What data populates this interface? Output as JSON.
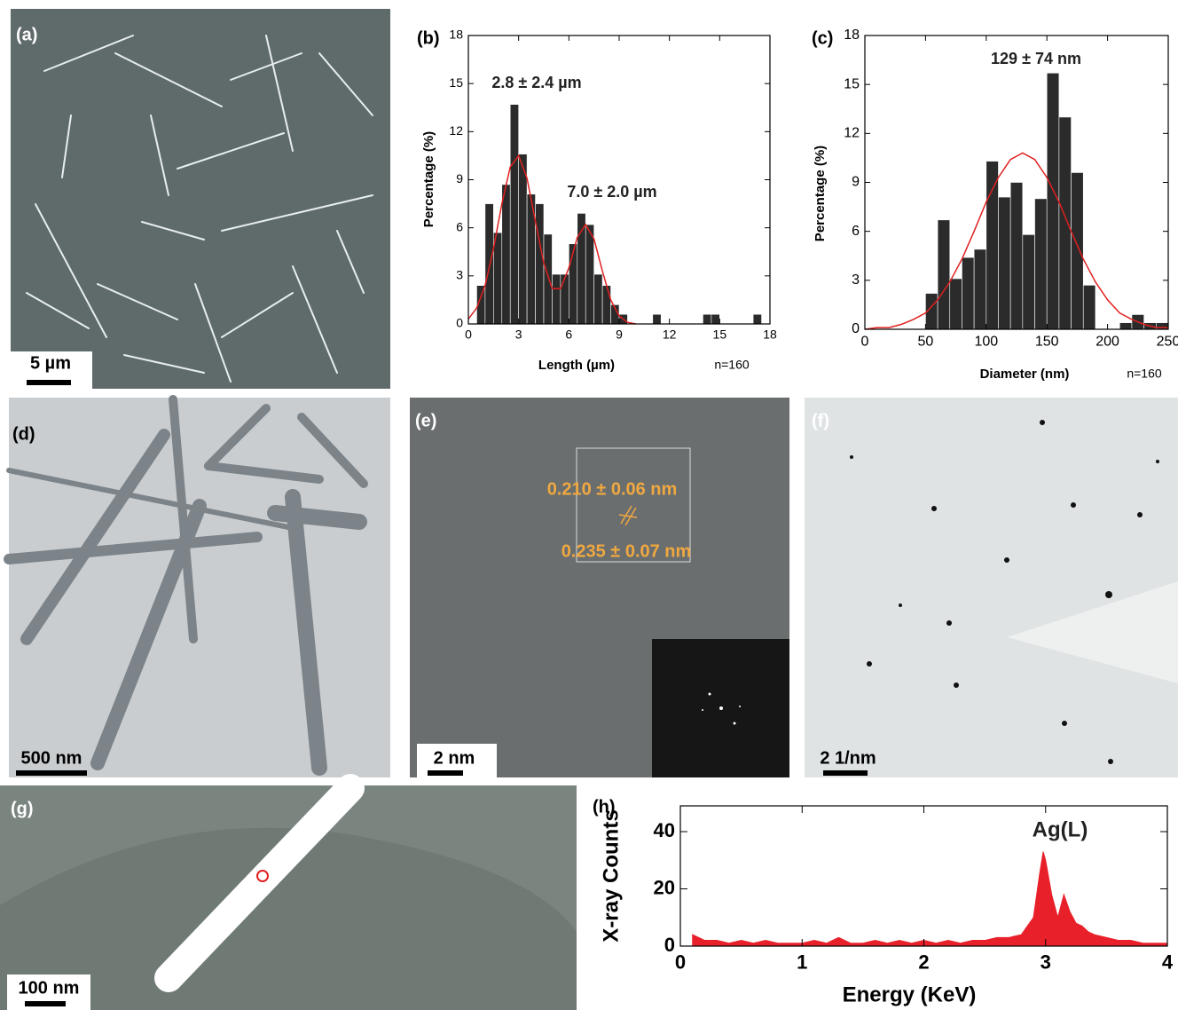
{
  "panels": [
    {
      "label": "(a)",
      "scale_bar": "5 µm"
    },
    {
      "label": "(d)",
      "scale_bar": "500 nm"
    },
    {
      "label": "(e)",
      "scale_bar": "2 nm",
      "annotations": [
        "0.210 ± 0.06 nm",
        "0.235 ± 0.07 nm"
      ]
    },
    {
      "label": "(f)",
      "scale_bar": "2 1/nm"
    },
    {
      "label": "(g)",
      "scale_bar": "100 nm"
    }
  ],
  "chart_data": [
    {
      "type": "histogram",
      "panel": "(b)",
      "xlabel": "Length (µm)",
      "ylabel": "Percentage (%)",
      "note": "n=160",
      "annotations": [
        "2.8 ± 2.4 µm",
        "7.0 ± 2.0 µm"
      ],
      "bins": [
        0.5,
        1,
        1.5,
        2,
        2.5,
        3,
        3.5,
        4,
        4.5,
        5,
        5.5,
        6,
        6.5,
        7,
        7.5,
        8,
        8.5,
        9,
        9.5,
        10,
        10.5,
        11,
        11.5,
        12,
        12.5,
        13,
        13.5,
        14,
        14.5,
        15,
        15.5,
        16,
        16.5,
        17,
        17.5
      ],
      "values": [
        2.4,
        7.5,
        5.7,
        8.7,
        13.7,
        10.6,
        8.1,
        7.5,
        5.6,
        3.1,
        3.1,
        5.0,
        6.9,
        6.2,
        3.1,
        2.4,
        1.2,
        0.6,
        0,
        0,
        0,
        0.6,
        0,
        0,
        0,
        0,
        0,
        0.6,
        0.6,
        0,
        0,
        0,
        0,
        0.6
      ],
      "color": "#2b2b2b",
      "fit": {
        "color": "#e02020",
        "x": [
          0,
          0.5,
          1,
          1.5,
          2,
          2.5,
          3,
          3.5,
          4,
          4.5,
          5,
          5.5,
          6,
          6.5,
          7,
          7.5,
          8,
          8.5,
          9,
          9.5,
          10
        ],
        "values": [
          0.3,
          1.0,
          2.4,
          4.7,
          7.5,
          9.8,
          10.5,
          9.1,
          6.4,
          3.8,
          2.2,
          2.2,
          3.5,
          5.4,
          6.2,
          5.3,
          3.3,
          1.5,
          0.5,
          0.1,
          0
        ]
      },
      "xlim": [
        0,
        18
      ],
      "xticks": [
        0,
        3,
        6,
        9,
        12,
        15,
        18
      ],
      "ylim": [
        0,
        18
      ],
      "yticks": [
        0,
        3,
        6,
        9,
        12,
        15,
        18
      ]
    },
    {
      "type": "histogram",
      "panel": "(c)",
      "xlabel": "Diameter (nm)",
      "ylabel": "Percentage (%)",
      "note": "n=160",
      "annotations": [
        "129 ± 74 nm"
      ],
      "bins": [
        50,
        60,
        70,
        80,
        90,
        100,
        110,
        120,
        130,
        140,
        150,
        160,
        170,
        180,
        190,
        200,
        210,
        220,
        230,
        240,
        250
      ],
      "values": [
        2.2,
        6.7,
        3.1,
        4.4,
        4.9,
        10.3,
        8.1,
        9.0,
        5.8,
        8.0,
        15.7,
        13.0,
        9.6,
        2.7,
        0,
        0,
        0.4,
        0.9,
        0.4,
        0.4
      ],
      "color": "#2b2b2b",
      "fit": {
        "color": "#e02020",
        "x": [
          0,
          10,
          20,
          30,
          40,
          50,
          60,
          70,
          80,
          90,
          100,
          110,
          120,
          130,
          140,
          150,
          160,
          170,
          180,
          190,
          200,
          210,
          220,
          230,
          240,
          250
        ],
        "values": [
          0,
          0.1,
          0.1,
          0.3,
          0.6,
          1.0,
          1.8,
          2.9,
          4.3,
          6.0,
          7.8,
          9.3,
          10.4,
          10.8,
          10.4,
          9.3,
          7.8,
          6.0,
          4.3,
          2.9,
          1.8,
          1.0,
          0.6,
          0.3,
          0.1,
          0.1
        ]
      },
      "xlim": [
        0,
        250
      ],
      "xticks": [
        0,
        50,
        100,
        150,
        200,
        250
      ],
      "ylim": [
        0,
        18
      ],
      "yticks": [
        0,
        3,
        6,
        9,
        12,
        15,
        18
      ]
    },
    {
      "type": "area",
      "panel": "(h)",
      "xlabel": "Energy (KeV)",
      "ylabel": "X-ray Counts",
      "annotations": [
        "Ag(L)"
      ],
      "color": "#e8202a",
      "x": [
        0.1,
        0.2,
        0.3,
        0.4,
        0.5,
        0.6,
        0.7,
        0.8,
        0.9,
        1.0,
        1.1,
        1.2,
        1.3,
        1.4,
        1.5,
        1.6,
        1.7,
        1.8,
        1.9,
        2.0,
        2.1,
        2.2,
        2.3,
        2.4,
        2.5,
        2.6,
        2.7,
        2.8,
        2.9,
        2.95,
        2.98,
        3.0,
        3.05,
        3.1,
        3.15,
        3.2,
        3.25,
        3.3,
        3.35,
        3.4,
        3.5,
        3.6,
        3.7,
        3.8,
        3.9,
        4.0
      ],
      "values": [
        4,
        2,
        2,
        1,
        2,
        1,
        2,
        1,
        1,
        1,
        2,
        1,
        3,
        1,
        1,
        2,
        1,
        2,
        1,
        2,
        1,
        2,
        1,
        2,
        2,
        3,
        3,
        4,
        10,
        25,
        33,
        30,
        18,
        10,
        18,
        12,
        8,
        7,
        5,
        4,
        3,
        2,
        2,
        1,
        1,
        1
      ],
      "xlim": [
        0,
        4
      ],
      "xticks": [
        0,
        1,
        2,
        3,
        4
      ],
      "ylim": [
        0,
        49
      ],
      "yticks": [
        0,
        20,
        40
      ]
    }
  ]
}
